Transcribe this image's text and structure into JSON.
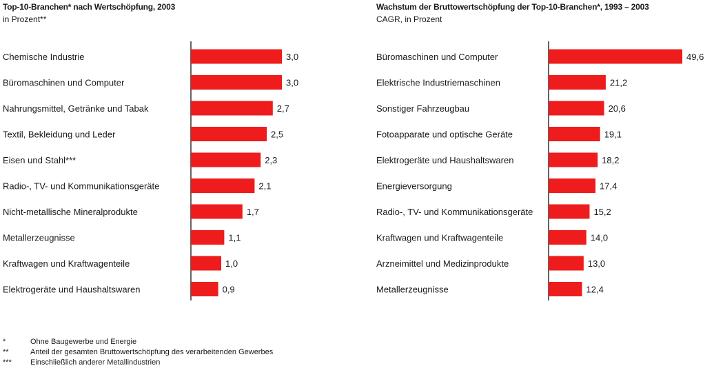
{
  "colors": {
    "bar": "#ee1c1c",
    "axis": "#222222"
  },
  "chart_data": [
    {
      "type": "bar",
      "orientation": "horizontal",
      "title": "Top-10-Branchen* nach Wertschöpfung, 2003",
      "subtitle": "in Prozent**",
      "categories": [
        "Chemische Industrie",
        "Büromaschinen und Computer",
        "Nahrungsmittel, Getränke und Tabak",
        "Textil, Bekleidung und Leder",
        "Eisen und Stahl***",
        "Radio-, TV- und Kommunikationsgeräte",
        "Nicht-metallische Mineralprodukte",
        "Metallerzeugnisse",
        "Kraftwagen und Kraftwagenteile",
        "Elektrogeräte und Haushaltswaren"
      ],
      "values": [
        3.0,
        3.0,
        2.7,
        2.5,
        2.3,
        2.1,
        1.7,
        1.1,
        1.0,
        0.9
      ],
      "value_labels": [
        "3,0",
        "3,0",
        "2,7",
        "2,5",
        "2,3",
        "2,1",
        "1,7",
        "1,1",
        "1,0",
        "0,9"
      ],
      "xlim": [
        0,
        3.0
      ],
      "grid": false
    },
    {
      "type": "bar",
      "orientation": "horizontal",
      "title": "Wachstum der Bruttowertschöpfung der Top-10-Branchen*, 1993 – 2003",
      "subtitle": "CAGR, in Prozent",
      "categories": [
        "Büromaschinen und Computer",
        "Elektrische Industriemaschinen",
        "Sonstiger Fahrzeugbau",
        "Fotoapparate und optische Geräte",
        "Elektrogeräte und Haushaltswaren",
        "Energieversorgung",
        "Radio-, TV- und Kommunikationsgeräte",
        "Kraftwagen und Kraftwagenteile",
        "Arzneimittel und Medizinprodukte",
        "Metallerzeugnisse"
      ],
      "values": [
        49.6,
        21.2,
        20.6,
        19.1,
        18.2,
        17.4,
        15.2,
        14.0,
        13.0,
        12.4
      ],
      "value_labels": [
        "49,6",
        "21,2",
        "20,6",
        "19,1",
        "18,2",
        "17,4",
        "15,2",
        "14,0",
        "13,0",
        "12,4"
      ],
      "xlim": [
        0,
        49.6
      ],
      "grid": false
    }
  ],
  "footnotes": [
    {
      "mark": "*",
      "text": "Ohne Baugewerbe und Energie"
    },
    {
      "mark": "**",
      "text": "Anteil der gesamten Bruttowertschöpfung des verarbeitenden Gewerbes"
    },
    {
      "mark": "***",
      "text": "Einschließlich anderer Metallindustrien"
    }
  ]
}
